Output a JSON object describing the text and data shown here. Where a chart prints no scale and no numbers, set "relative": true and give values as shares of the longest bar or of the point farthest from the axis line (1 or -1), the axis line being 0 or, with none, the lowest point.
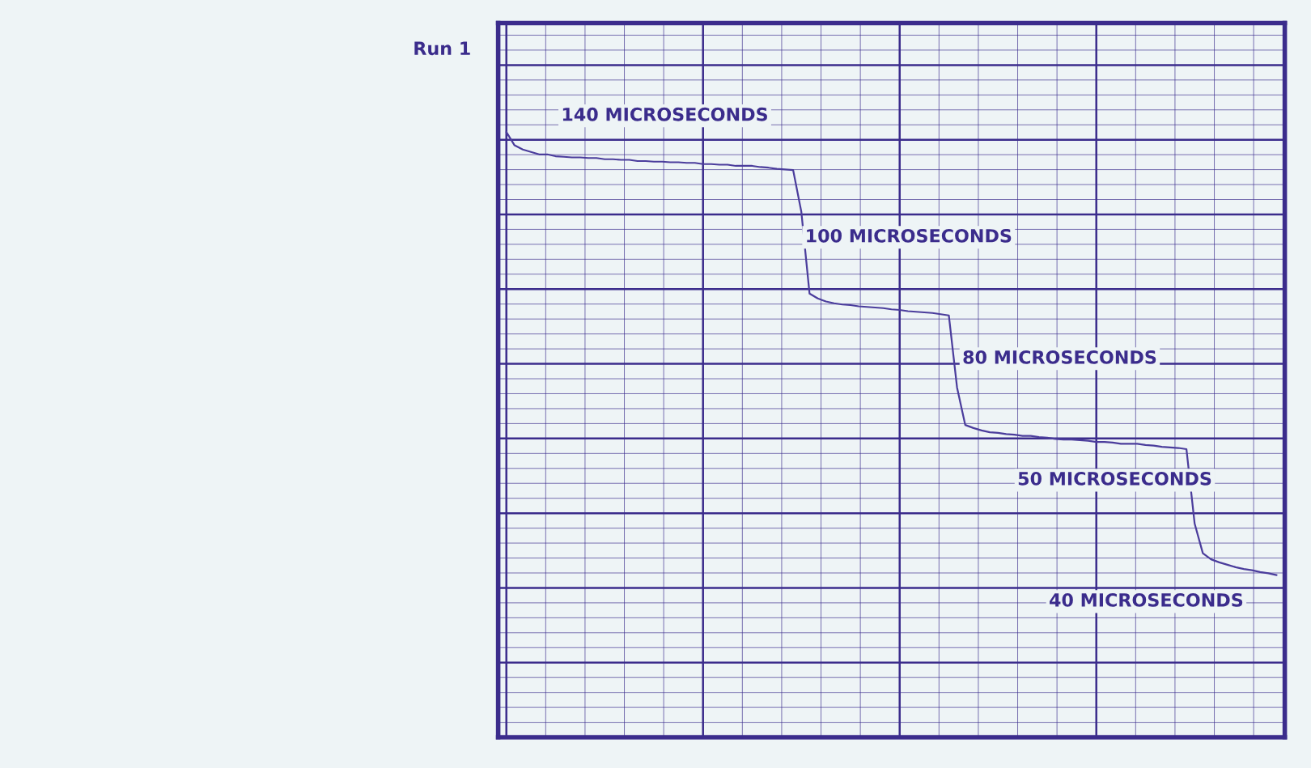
{
  "chart_data": {
    "type": "line",
    "title": "Run 1",
    "relative": true,
    "grid": true,
    "marker": "none",
    "line_style": "solid",
    "categories": [
      null,
      null,
      null,
      null,
      null,
      null,
      null,
      null,
      null,
      null,
      null,
      null,
      null,
      null,
      null,
      null,
      null,
      null,
      null,
      null,
      null,
      null,
      null,
      null,
      null,
      null,
      null,
      null,
      null,
      null,
      null,
      null,
      null,
      null,
      null,
      null,
      null,
      null,
      null,
      null,
      null,
      null,
      null,
      null,
      null,
      null,
      null,
      null,
      null,
      null,
      null,
      null,
      null,
      null,
      null,
      null,
      null,
      null,
      null,
      null,
      null,
      null,
      null,
      null,
      null,
      null,
      null,
      null,
      null,
      null,
      null,
      null,
      null,
      null,
      null,
      null,
      null,
      null,
      null,
      null,
      null,
      null,
      null,
      null,
      null,
      null,
      null,
      null,
      null,
      null,
      null,
      null,
      null,
      null,
      null
    ],
    "series": [
      {
        "color": "#4b3d9c",
        "values": [
          1.0,
          0.978,
          0.971,
          0.967,
          0.963,
          0.963,
          0.96,
          0.959,
          0.958,
          0.958,
          0.957,
          0.957,
          0.955,
          0.955,
          0.954,
          0.954,
          0.952,
          0.952,
          0.951,
          0.951,
          0.95,
          0.95,
          0.949,
          0.949,
          0.947,
          0.947,
          0.946,
          0.946,
          0.944,
          0.944,
          0.944,
          0.942,
          0.941,
          0.939,
          0.938,
          0.937,
          0.868,
          0.733,
          0.725,
          0.72,
          0.717,
          0.715,
          0.714,
          0.712,
          0.711,
          0.71,
          0.709,
          0.707,
          0.706,
          0.704,
          0.703,
          0.702,
          0.701,
          0.699,
          0.697,
          0.578,
          0.516,
          0.511,
          0.507,
          0.504,
          0.503,
          0.501,
          0.5,
          0.498,
          0.498,
          0.496,
          0.495,
          0.493,
          0.492,
          0.492,
          0.491,
          0.49,
          0.488,
          0.488,
          0.487,
          0.485,
          0.485,
          0.485,
          0.483,
          0.482,
          0.48,
          0.479,
          0.478,
          0.476,
          0.353,
          0.304,
          0.294,
          0.289,
          0.285,
          0.281,
          0.278,
          0.276,
          0.273,
          0.271,
          0.268
        ]
      }
    ],
    "annotations": [
      "140 MICROSECONDS",
      "100 MICROSECONDS",
      "80 MICROSECONDS",
      "50 MICROSECONDS",
      "40 MICROSECONDS"
    ]
  }
}
